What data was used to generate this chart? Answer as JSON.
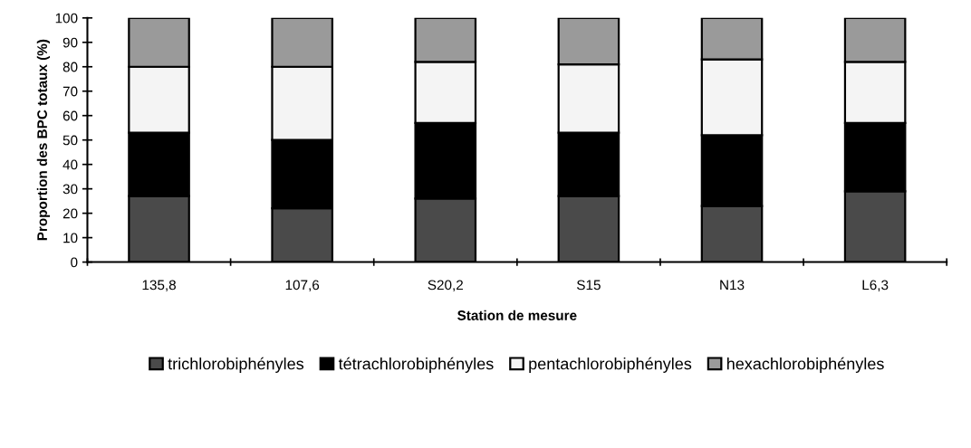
{
  "chart_data": {
    "type": "bar",
    "stacked": true,
    "xlabel": "Station de mesure",
    "ylabel": "Proportion des BPC totaux (%)",
    "categories": [
      "135,8",
      "107,6",
      "S20,2",
      "S15",
      "N13",
      "L6,3"
    ],
    "series": [
      {
        "name": "trichlorobiphényles",
        "color": "#4a4a4a",
        "values": [
          27,
          22,
          26,
          27,
          23,
          29
        ]
      },
      {
        "name": "tétrachlorobiphényles",
        "color": "#000000",
        "values": [
          26,
          28,
          31,
          26,
          29,
          28
        ]
      },
      {
        "name": "pentachlorobiphényles",
        "color": "#f4f4f4",
        "values": [
          27,
          30,
          25,
          28,
          31,
          25
        ]
      },
      {
        "name": "hexachlorobiphényles",
        "color": "#9a9a9a",
        "values": [
          20,
          20,
          18,
          19,
          17,
          18
        ]
      }
    ],
    "ylim": [
      0,
      100
    ],
    "yticks": [
      0,
      10,
      20,
      30,
      40,
      50,
      60,
      70,
      80,
      90,
      100
    ],
    "grid": false,
    "legend": "bottom"
  }
}
